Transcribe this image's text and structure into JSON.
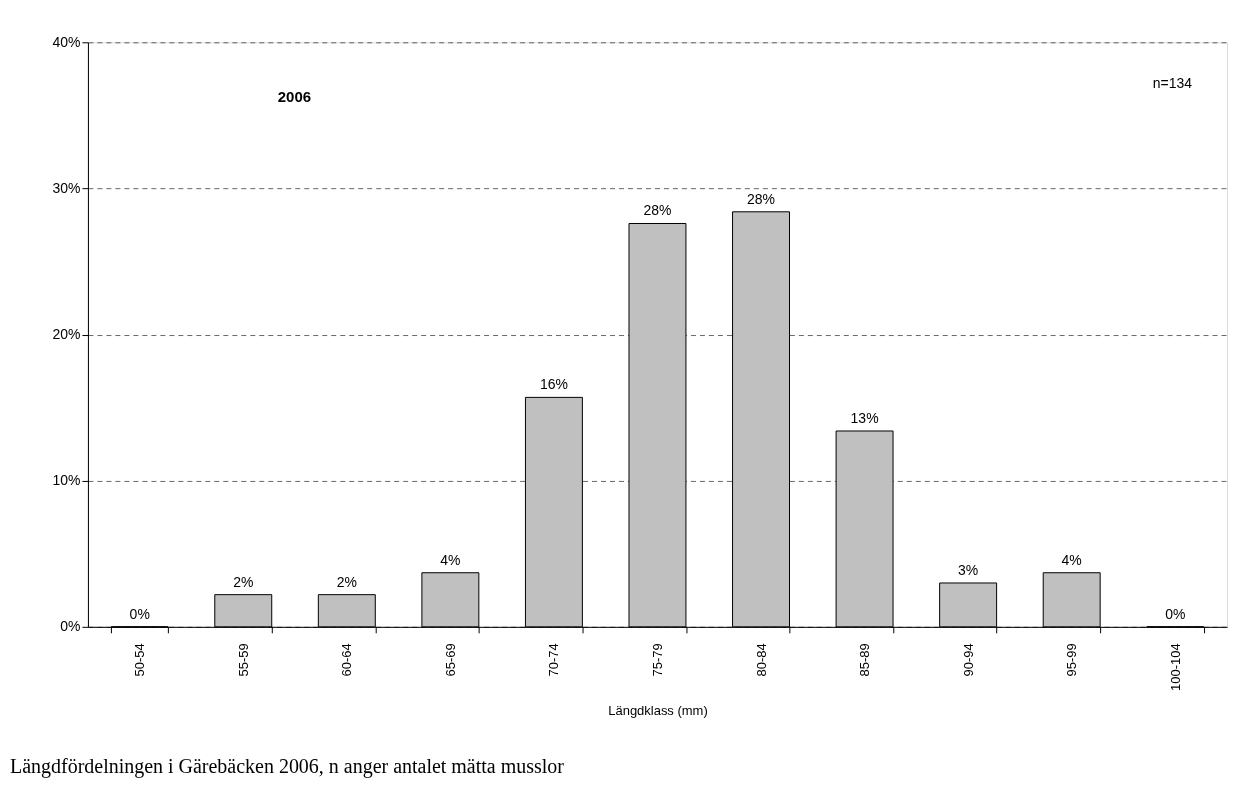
{
  "chart_data": {
    "type": "bar",
    "title": "2006",
    "xlabel": "Längdklass (mm)",
    "categories": [
      "50-54",
      "55-59",
      "60-64",
      "65-69",
      "70-74",
      "75-79",
      "80-84",
      "85-89",
      "90-94",
      "95-99",
      "100-104"
    ],
    "values": [
      0,
      2.2,
      2.2,
      3.7,
      15.7,
      27.6,
      28.4,
      13.4,
      3.0,
      3.7,
      0
    ],
    "value_labels": [
      "0%",
      "2%",
      "2%",
      "4%",
      "16%",
      "28%",
      "28%",
      "13%",
      "3%",
      "4%",
      "0%"
    ],
    "color": "#c0c0c0",
    "ylim": [
      0,
      40
    ],
    "yticks": [
      {
        "value": 0,
        "label": "0%"
      },
      {
        "value": 10,
        "label": "10%"
      },
      {
        "value": 20,
        "label": "20%"
      },
      {
        "value": 30,
        "label": "30%"
      },
      {
        "value": 40,
        "label": "40%"
      }
    ],
    "grid": "y",
    "annotations": [
      "n=134",
      "Längdfördelningen i Gärebäcken 2006, n anger antalet mätta musslor"
    ]
  }
}
